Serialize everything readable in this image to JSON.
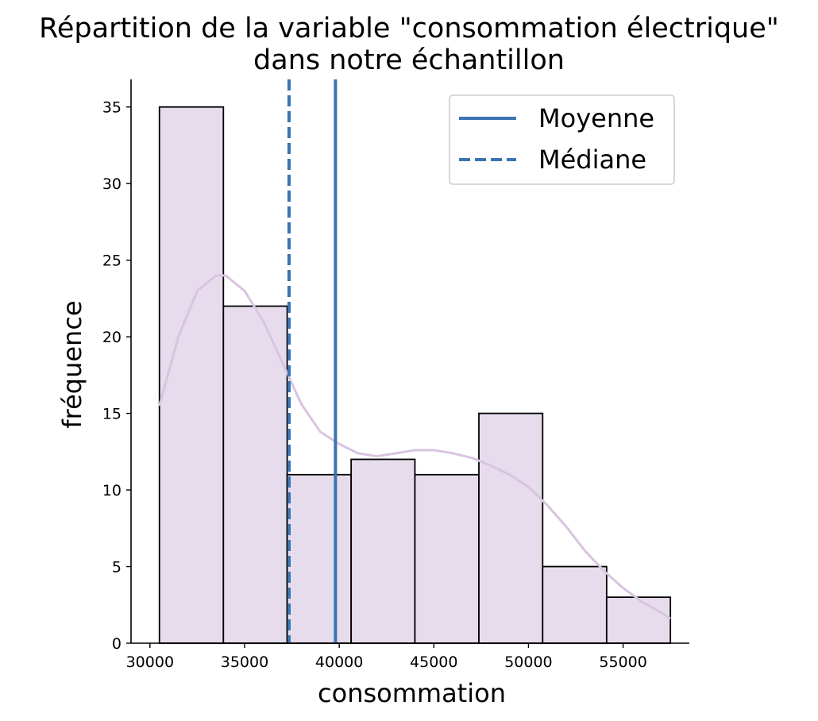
{
  "chart_data": {
    "type": "bar",
    "title": "Répartition de la variable \"consommation électrique\"",
    "title_line2": "dans notre échantillon",
    "xlabel": "consommation",
    "ylabel": "fréquence",
    "xlim": [
      29000,
      58500
    ],
    "ylim": [
      0,
      36.8
    ],
    "bins": [
      {
        "x0": 30500,
        "x1": 33880,
        "count": 35
      },
      {
        "x0": 33880,
        "x1": 37250,
        "count": 22
      },
      {
        "x0": 37250,
        "x1": 40630,
        "count": 11
      },
      {
        "x0": 40630,
        "x1": 44000,
        "count": 12
      },
      {
        "x0": 44000,
        "x1": 47380,
        "count": 11
      },
      {
        "x0": 47380,
        "x1": 50750,
        "count": 15
      },
      {
        "x0": 50750,
        "x1": 54130,
        "count": 5
      },
      {
        "x0": 54130,
        "x1": 57500,
        "count": 3
      }
    ],
    "kde": {
      "x": [
        30500,
        31500,
        32500,
        33500,
        34000,
        35000,
        36000,
        37000,
        38000,
        39000,
        40000,
        41000,
        42000,
        43000,
        44000,
        45000,
        46000,
        47000,
        48000,
        49000,
        50000,
        51000,
        52000,
        53000,
        54000,
        55000,
        56000,
        57000,
        57500
      ],
      "y": [
        15.5,
        20.0,
        23.0,
        24.0,
        24.0,
        23.0,
        21.0,
        18.3,
        15.6,
        13.8,
        13.0,
        12.4,
        12.2,
        12.4,
        12.6,
        12.6,
        12.4,
        12.1,
        11.6,
        11.0,
        10.2,
        9.0,
        7.6,
        6.0,
        4.7,
        3.6,
        2.7,
        2.0,
        1.6
      ]
    },
    "mean": 39800,
    "median": 37350,
    "xticks": [
      30000,
      35000,
      40000,
      45000,
      50000,
      55000
    ],
    "yticks": [
      0,
      5,
      10,
      15,
      20,
      25,
      30,
      35
    ],
    "legend": {
      "placement": "top-right",
      "entries": [
        {
          "label": "Moyenne",
          "style": "solid"
        },
        {
          "label": "Médiane",
          "style": "dashed"
        }
      ]
    },
    "colors": {
      "bar_fill": "#e6dcec",
      "bar_edge": "#000000",
      "kde": "#d9c4e0",
      "lines": "#3a75b0"
    }
  }
}
